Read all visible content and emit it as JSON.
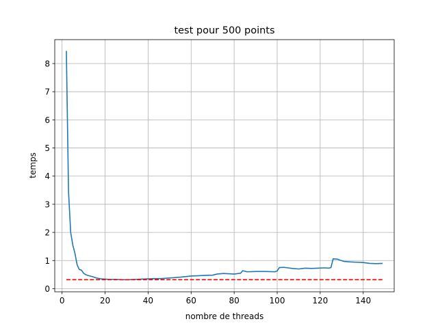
{
  "chart_data": {
    "type": "line",
    "title": "test pour 500 points",
    "xlabel": "nombre de threads",
    "ylabel": "temps",
    "xlim": [
      -3.4,
      154.4
    ],
    "ylim": [
      -0.11,
      8.85
    ],
    "xticks": [
      0,
      20,
      40,
      60,
      80,
      100,
      120,
      140
    ],
    "yticks": [
      0,
      1,
      2,
      3,
      4,
      5,
      6,
      7,
      8
    ],
    "grid": true,
    "series": [
      {
        "color": "#1f77b4",
        "style": "solid",
        "x": [
          2,
          3,
          4,
          5,
          6,
          7,
          8,
          9,
          10,
          11,
          12,
          14,
          16,
          18,
          20,
          22,
          25,
          28,
          31,
          34,
          37,
          40,
          43,
          46,
          50,
          55,
          60,
          63,
          66,
          70,
          72,
          75,
          78,
          80,
          83,
          84,
          86,
          90,
          95,
          99,
          100,
          101,
          103,
          105,
          107,
          110,
          113,
          116,
          119,
          122,
          124,
          125,
          126,
          128,
          129,
          131,
          134,
          137,
          140,
          143,
          146,
          149
        ],
        "y": [
          8.45,
          3.45,
          2.0,
          1.55,
          1.25,
          0.85,
          0.68,
          0.66,
          0.55,
          0.5,
          0.47,
          0.43,
          0.38,
          0.35,
          0.34,
          0.33,
          0.33,
          0.32,
          0.32,
          0.33,
          0.34,
          0.35,
          0.36,
          0.36,
          0.38,
          0.41,
          0.45,
          0.46,
          0.47,
          0.48,
          0.52,
          0.54,
          0.53,
          0.52,
          0.55,
          0.64,
          0.6,
          0.61,
          0.61,
          0.6,
          0.63,
          0.75,
          0.76,
          0.74,
          0.72,
          0.7,
          0.73,
          0.72,
          0.73,
          0.74,
          0.73,
          0.75,
          1.06,
          1.05,
          1.02,
          0.97,
          0.95,
          0.94,
          0.93,
          0.9,
          0.89,
          0.9
        ]
      },
      {
        "color": "#ff0000",
        "style": "dashed",
        "x": [
          2,
          149
        ],
        "y": [
          0.32,
          0.32
        ]
      }
    ]
  }
}
